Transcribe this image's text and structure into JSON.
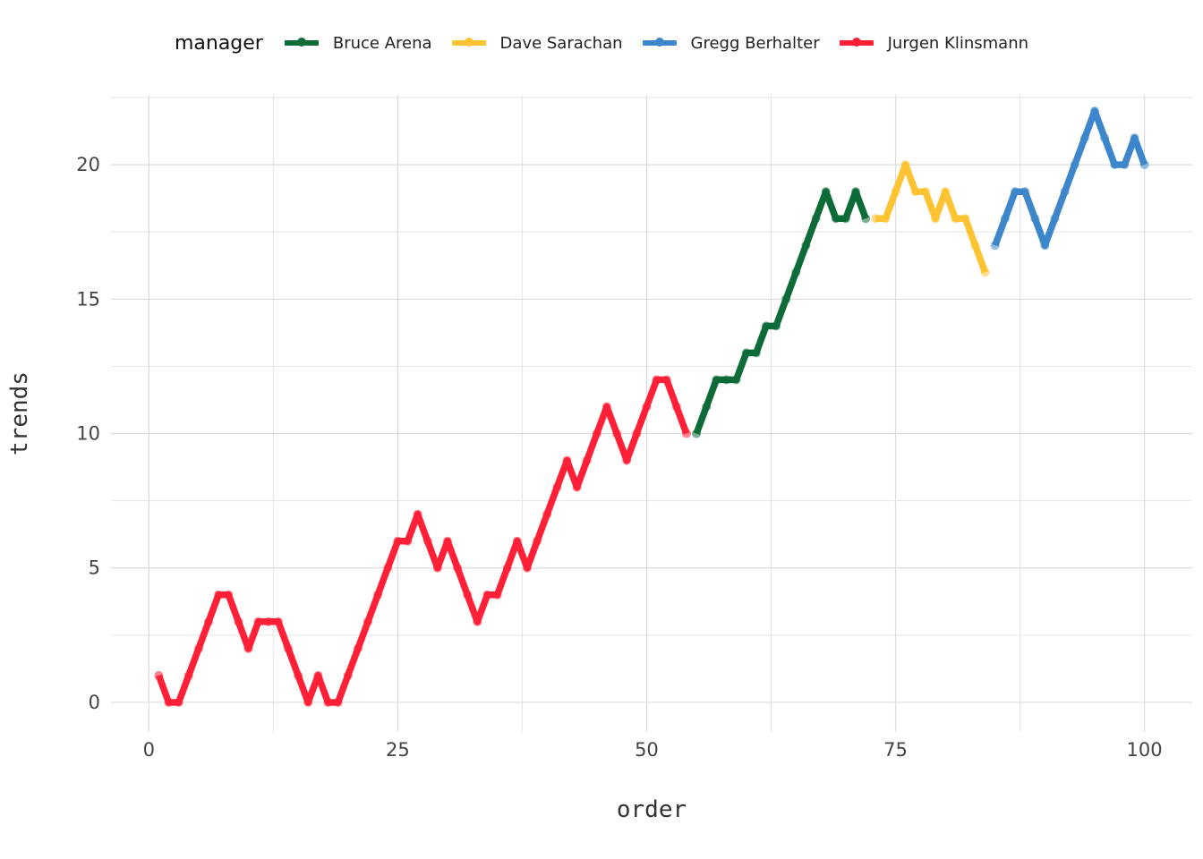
{
  "chart_data": {
    "type": "line",
    "xlabel": "order",
    "ylabel": "trends",
    "xlim": [
      -3.8,
      104.8
    ],
    "ylim": [
      -1.1,
      22.6
    ],
    "x_ticks": [
      0,
      25,
      50,
      75,
      100
    ],
    "y_ticks": [
      0,
      5,
      10,
      15,
      20
    ],
    "grid": true,
    "legend": {
      "title": "manager",
      "position": "top"
    },
    "series": [
      {
        "name": "Bruce Arena",
        "color": "#0d6b38",
        "x": [
          55,
          56,
          57,
          58,
          59,
          60,
          61,
          62,
          63,
          64,
          65,
          66,
          67,
          68,
          69,
          70,
          71,
          72
        ],
        "y": [
          10,
          11,
          12,
          12,
          12,
          13,
          13,
          14,
          14,
          15,
          16,
          17,
          18,
          19,
          18,
          18,
          19,
          18
        ]
      },
      {
        "name": "Dave Sarachan",
        "color": "#fec332",
        "x": [
          73,
          74,
          75,
          76,
          77,
          78,
          79,
          80,
          81,
          82,
          83,
          84
        ],
        "y": [
          18,
          18,
          19,
          20,
          19,
          19,
          18,
          19,
          18,
          18,
          17,
          16
        ]
      },
      {
        "name": "Gregg Berhalter",
        "color": "#3d86cb",
        "x": [
          85,
          86,
          87,
          88,
          89,
          90,
          91,
          92,
          93,
          94,
          95,
          96,
          97,
          98,
          99,
          100
        ],
        "y": [
          17,
          18,
          19,
          19,
          18,
          17,
          18,
          19,
          20,
          21,
          22,
          21,
          20,
          20,
          21,
          20
        ]
      },
      {
        "name": "Jurgen Klinsmann",
        "color": "#fe2036",
        "x": [
          1,
          2,
          3,
          4,
          5,
          6,
          7,
          8,
          9,
          10,
          11,
          12,
          13,
          14,
          15,
          16,
          17,
          18,
          19,
          20,
          21,
          22,
          23,
          24,
          25,
          26,
          27,
          28,
          29,
          30,
          31,
          32,
          33,
          34,
          35,
          36,
          37,
          38,
          39,
          40,
          41,
          42,
          43,
          44,
          45,
          46,
          47,
          48,
          49,
          50,
          51,
          52,
          53,
          54
        ],
        "y": [
          1,
          0,
          0,
          1,
          2,
          3,
          4,
          4,
          3,
          2,
          3,
          3,
          3,
          2,
          1,
          0,
          1,
          0,
          0,
          1,
          2,
          3,
          4,
          5,
          6,
          6,
          7,
          6,
          5,
          6,
          5,
          4,
          3,
          4,
          4,
          5,
          6,
          5,
          6,
          7,
          8,
          9,
          8,
          9,
          10,
          11,
          10,
          9,
          10,
          11,
          12,
          12,
          11,
          10
        ]
      }
    ]
  }
}
